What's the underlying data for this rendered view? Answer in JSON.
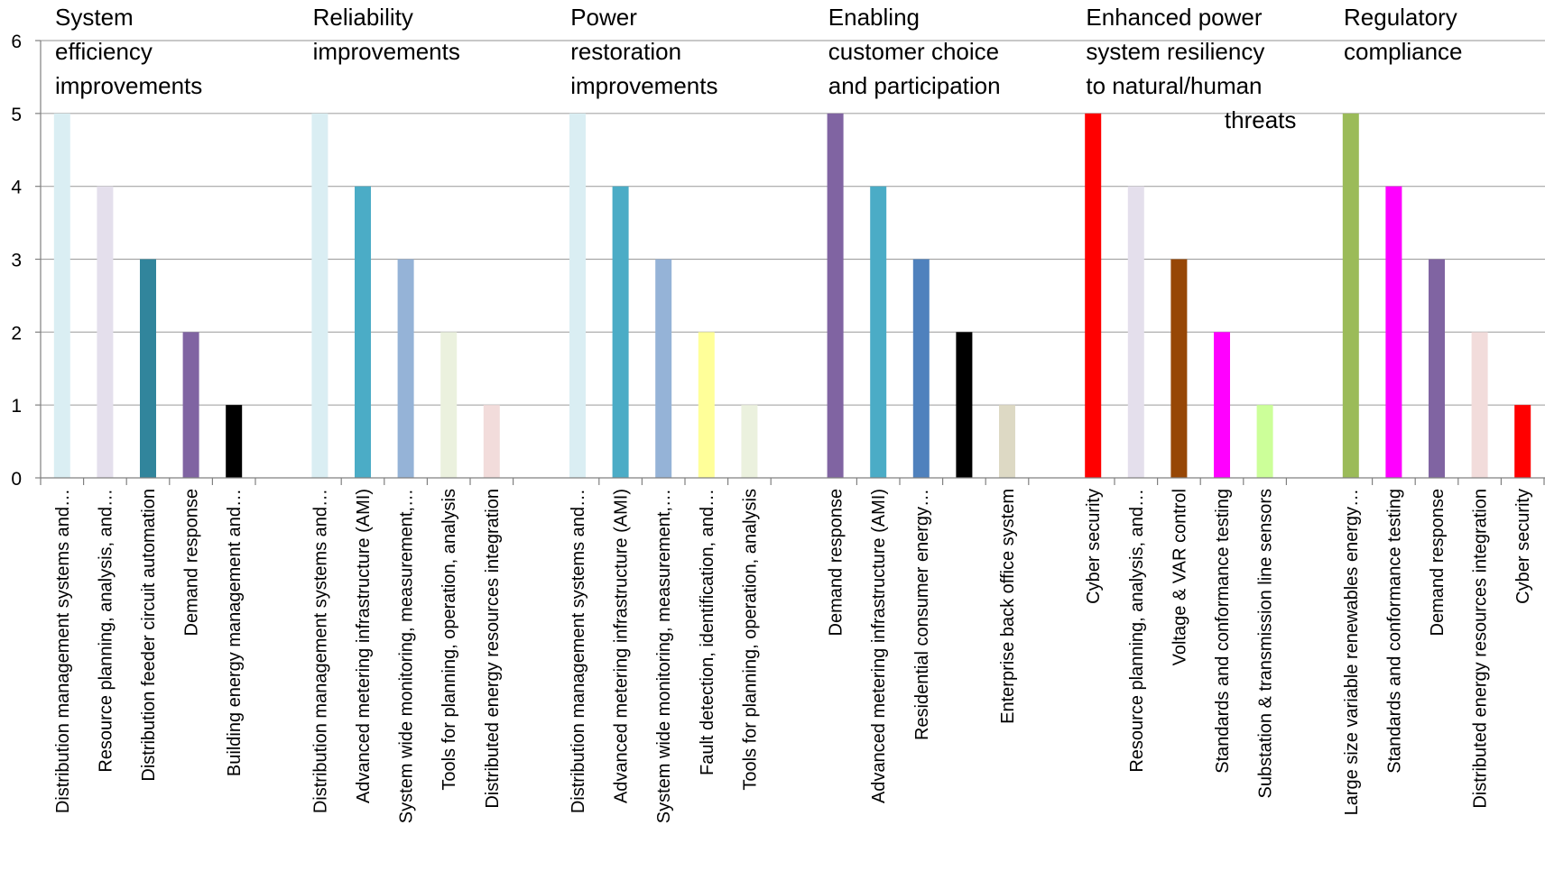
{
  "chart_data": {
    "type": "bar",
    "ylim": [
      0,
      6
    ],
    "yticks": [
      0,
      1,
      2,
      3,
      4,
      5,
      6
    ],
    "grid": true,
    "groups": [
      {
        "title_lines": [
          "System",
          "efficiency",
          "improvements"
        ],
        "bars": [
          {
            "label": "Distribution management systems and…",
            "value": 5,
            "color": "#DAEEF3"
          },
          {
            "label": "Resource planning, analysis, and…",
            "value": 4,
            "color": "#E4DFEC"
          },
          {
            "label": "Distribution feeder circuit automation",
            "value": 3,
            "color": "#31859C"
          },
          {
            "label": "Demand response",
            "value": 2,
            "color": "#8064A2"
          },
          {
            "label": "Building energy management and…",
            "value": 1,
            "color": "#000000"
          }
        ]
      },
      {
        "title_lines": [
          "Reliability",
          "improvements"
        ],
        "bars": [
          {
            "label": "Distribution management systems and…",
            "value": 5,
            "color": "#DAEEF3"
          },
          {
            "label": "Advanced metering infrastructure (AMI)",
            "value": 4,
            "color": "#4BACC6"
          },
          {
            "label": "System wide monitoring, measurement,…",
            "value": 3,
            "color": "#95B3D7"
          },
          {
            "label": "Tools for planning, operation, analysis",
            "value": 2,
            "color": "#EBF1DE"
          },
          {
            "label": "Distributed energy resources integration",
            "value": 1,
            "color": "#F2DCDB"
          }
        ]
      },
      {
        "title_lines": [
          "Power",
          "restoration",
          "improvements"
        ],
        "bars": [
          {
            "label": "Distribution management systems and…",
            "value": 5,
            "color": "#DAEEF3"
          },
          {
            "label": "Advanced metering infrastructure (AMI)",
            "value": 4,
            "color": "#4BACC6"
          },
          {
            "label": "System wide monitoring, measurement,…",
            "value": 3,
            "color": "#95B3D7"
          },
          {
            "label": "Fault detection, identification, and…",
            "value": 2,
            "color": "#FFFF99"
          },
          {
            "label": "Tools for planning, operation, analysis",
            "value": 1,
            "color": "#EBF1DE"
          }
        ]
      },
      {
        "title_lines": [
          "Enabling",
          "customer choice",
          "and participation"
        ],
        "bars": [
          {
            "label": "Demand response",
            "value": 5,
            "color": "#8064A2"
          },
          {
            "label": "Advanced metering infrastructure (AMI)",
            "value": 4,
            "color": "#4BACC6"
          },
          {
            "label": "Residential consumer energy…",
            "value": 3,
            "color": "#4F81BD"
          },
          {
            "label": "",
            "value": 2,
            "color": "#000000"
          },
          {
            "label": "Enterprise back office system",
            "value": 1,
            "color": "#DDD9C4"
          }
        ]
      },
      {
        "title_lines": [
          "Enhanced power",
          "system resiliency",
          "to natural/human",
          "threats"
        ],
        "bars": [
          {
            "label": "Cyber security",
            "value": 5,
            "color": "#FF0000"
          },
          {
            "label": "Resource planning, analysis, and…",
            "value": 4,
            "color": "#E4DFEC"
          },
          {
            "label": "Voltage & VAR control",
            "value": 3,
            "color": "#974706"
          },
          {
            "label": "Standards and conformance testing",
            "value": 2,
            "color": "#FF00FF"
          },
          {
            "label": "Substation & transmission line sensors",
            "value": 1,
            "color": "#CCFF99"
          }
        ]
      },
      {
        "title_lines": [
          "Regulatory",
          "compliance"
        ],
        "bars": [
          {
            "label": "Large size variable renewables energy…",
            "value": 5,
            "color": "#9BBB59"
          },
          {
            "label": "Standards and conformance testing",
            "value": 4,
            "color": "#FF00FF"
          },
          {
            "label": "Demand response",
            "value": 3,
            "color": "#8064A2"
          },
          {
            "label": "Distributed energy resources integration",
            "value": 2,
            "color": "#F2DCDB"
          },
          {
            "label": "Cyber security",
            "value": 1,
            "color": "#FF0000"
          }
        ]
      }
    ]
  }
}
